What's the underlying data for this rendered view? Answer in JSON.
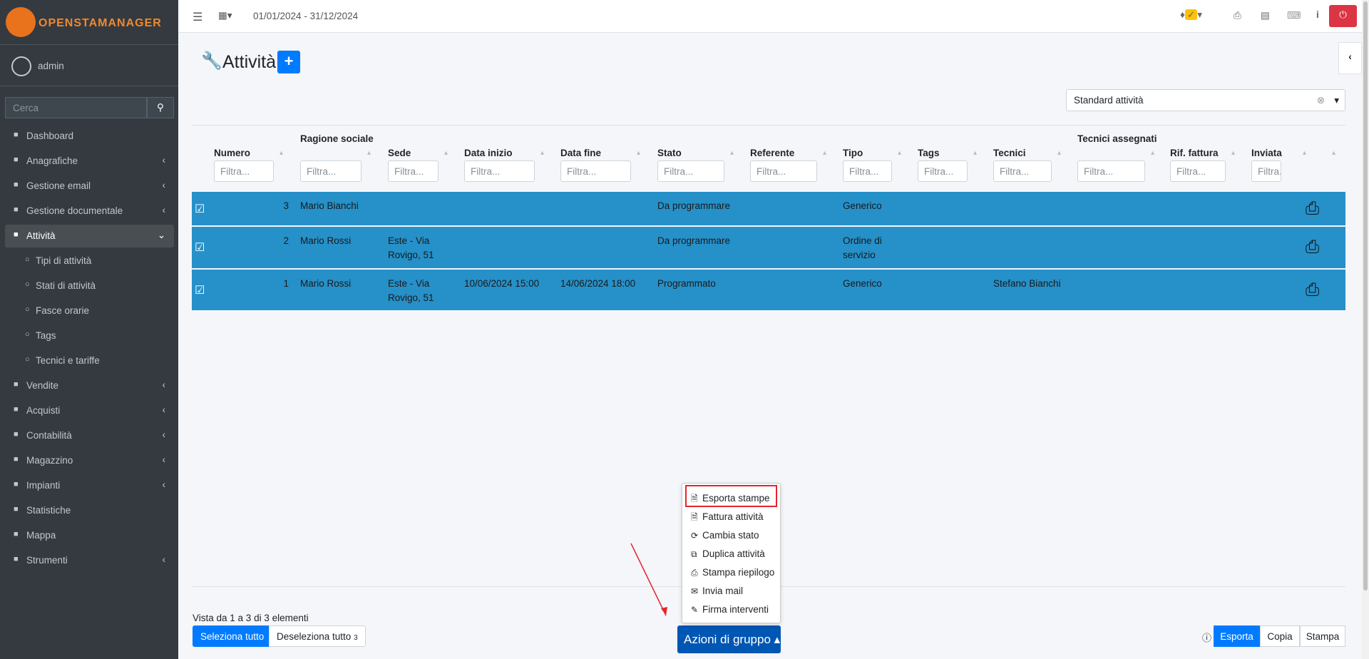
{
  "brand": "OPENSTAMANAGER",
  "header": {
    "date_range": "01/01/2024 - 31/12/2024"
  },
  "sidebar": {
    "user": "admin",
    "search_placeholder": "Cerca",
    "menu": [
      "Dashboard",
      "Anagrafiche",
      "Gestione email",
      "Gestione documentale",
      "Attività",
      "Tipi di attività",
      "Stati di attività",
      "Fasce orarie",
      "Tags",
      "Tecnici e tariffe",
      "Vendite",
      "Acquisti",
      "Contabilità",
      "Magazzino",
      "Impianti",
      "Statistiche",
      "Mappa",
      "Strumenti"
    ]
  },
  "page": {
    "title": "Attività",
    "segment_select": "Standard attività"
  },
  "table": {
    "columns": [
      "Numero",
      "Ragione sociale",
      "Sede",
      "Data inizio",
      "Data fine",
      "Stato",
      "Referente",
      "Tipo",
      "Tags",
      "Tecnici",
      "Tecnici assegnati",
      "Rif. fattura",
      "Inviata"
    ],
    "filter_placeholder": "Filtra...",
    "rows": [
      [
        "3",
        "Mario Bianchi",
        "",
        "",
        "",
        "Da programmare",
        "",
        "Generico",
        "",
        "",
        "",
        "",
        ""
      ],
      [
        "2",
        "Mario Rossi",
        "Este - Via Rovigo, 51",
        "",
        "",
        "Da programmare",
        "",
        "Ordine di servizio",
        "",
        "",
        "",
        "",
        ""
      ],
      [
        "1",
        "Mario Rossi",
        "Este - Via Rovigo, 51",
        "10/06/2024 15:00",
        "14/06/2024 18:00",
        "Programmato",
        "",
        "Generico",
        "",
        "Stefano Bianchi",
        "",
        "",
        ""
      ]
    ]
  },
  "footer": {
    "info": "Vista da 1 a 3 di 3 elementi",
    "select_all": "Seleziona tutto",
    "deselect_all": "Deseleziona tutto",
    "selected_count": "3",
    "group_actions": "Azioni di gruppo",
    "group_menu": [
      "Esporta stampe",
      "Fattura attività",
      "Cambia stato",
      "Duplica attività",
      "Stampa riepilogo",
      "Invia mail",
      "Firma interventi"
    ],
    "export_buttons": [
      "Esporta",
      "Copia",
      "Stampa"
    ]
  }
}
